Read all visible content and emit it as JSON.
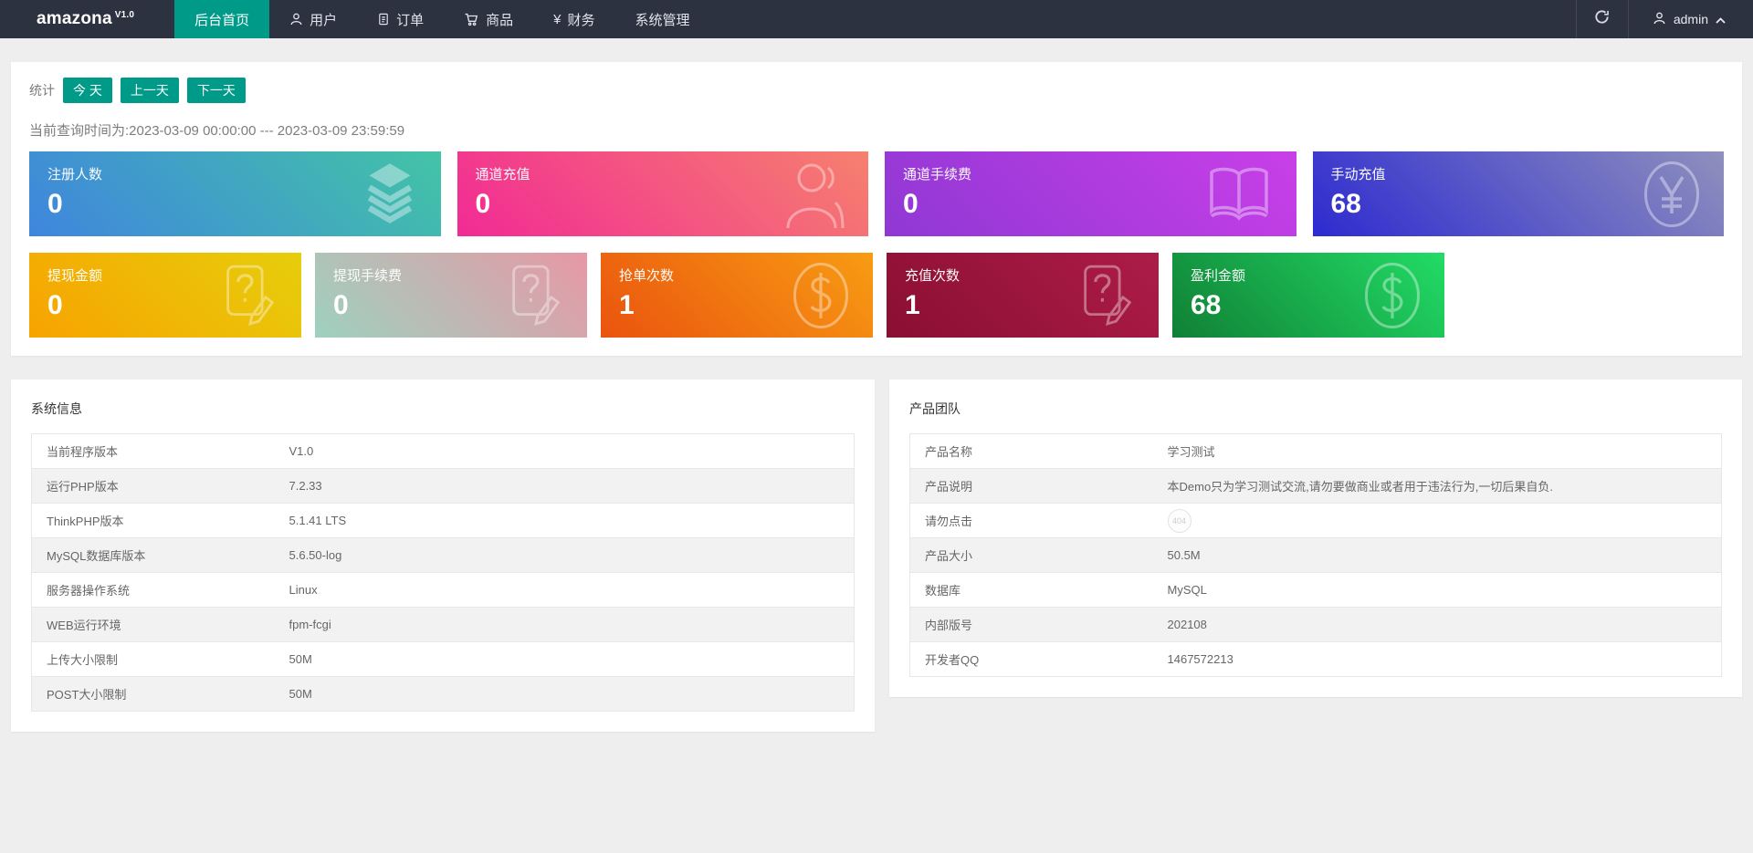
{
  "navbar": {
    "brand": "amazona",
    "brand_version": "V1.0",
    "menu": [
      {
        "key": "home",
        "label": "后台首页",
        "icon": "",
        "active": true
      },
      {
        "key": "users",
        "label": "用户",
        "icon": "user",
        "active": false
      },
      {
        "key": "orders",
        "label": "订单",
        "icon": "order",
        "active": false
      },
      {
        "key": "goods",
        "label": "商品",
        "icon": "cart",
        "active": false
      },
      {
        "key": "finance",
        "label": "财务",
        "icon": "yen",
        "active": false
      },
      {
        "key": "system",
        "label": "系统管理",
        "icon": "",
        "active": false
      }
    ],
    "user_name": "admin"
  },
  "stats": {
    "section_label": "统计",
    "range_buttons": [
      "今 天",
      "上一天",
      "下一天"
    ],
    "query_time": "当前查询时间为:2023-03-09 00:00:00 --- 2023-03-09 23:59:59",
    "cards_row1": [
      {
        "key": "registered-users",
        "title": "注册人数",
        "value": "0",
        "icon": "layers",
        "gradient_from": "#3f85de",
        "gradient_to": "#43c4a6"
      },
      {
        "key": "channel-recharge",
        "title": "通道充值",
        "value": "0",
        "icon": "person",
        "gradient_from": "#f22a95",
        "gradient_to": "#f6806e"
      },
      {
        "key": "channel-fee",
        "title": "通道手续费",
        "value": "0",
        "icon": "book",
        "gradient_from": "#8f38d4",
        "gradient_to": "#c93fe8"
      },
      {
        "key": "manual-recharge",
        "title": "手动充值",
        "value": "68",
        "icon": "yen-circle",
        "gradient_from": "#2d2ad0",
        "gradient_to": "#8f90bd"
      }
    ],
    "cards_row2": [
      {
        "key": "withdraw-amount",
        "title": "提现金额",
        "value": "0",
        "icon": "doc-question",
        "gradient_from": "#f8a300",
        "gradient_to": "#e6ce0c"
      },
      {
        "key": "withdraw-fee",
        "title": "提现手续费",
        "value": "0",
        "icon": "doc-question",
        "gradient_from": "#9ed1bf",
        "gradient_to": "#e798a5"
      },
      {
        "key": "grab-order-count",
        "title": "抢单次数",
        "value": "1",
        "icon": "dollar-circle",
        "gradient_from": "#ea540e",
        "gradient_to": "#f89c13"
      },
      {
        "key": "recharge-count",
        "title": "充值次数",
        "value": "1",
        "icon": "doc-question",
        "gradient_from": "#8a0f31",
        "gradient_to": "#ad1c49"
      },
      {
        "key": "profit-amount",
        "title": "盈利金额",
        "value": "68",
        "icon": "dollar-circle",
        "gradient_from": "#108035",
        "gradient_to": "#22dc66"
      }
    ]
  },
  "system_info": {
    "title": "系统信息",
    "rows": [
      {
        "label": "当前程序版本",
        "value": "V1.0"
      },
      {
        "label": "运行PHP版本",
        "value": "7.2.33"
      },
      {
        "label": "ThinkPHP版本",
        "value": "5.1.41 LTS"
      },
      {
        "label": "MySQL数据库版本",
        "value": "5.6.50-log"
      },
      {
        "label": "服务器操作系统",
        "value": "Linux"
      },
      {
        "label": "WEB运行环境",
        "value": "fpm-fcgi"
      },
      {
        "label": "上传大小限制",
        "value": "50M"
      },
      {
        "label": "POST大小限制",
        "value": "50M"
      }
    ]
  },
  "product_team": {
    "title": "产品团队",
    "rows": [
      {
        "label": "产品名称",
        "value": "学习测试"
      },
      {
        "label": "产品说明",
        "value": "本Demo只为学习测试交流,请勿要做商业或者用于违法行为,一切后果自负."
      },
      {
        "label": "请勿点击",
        "value": "404",
        "badge": true
      },
      {
        "label": "产品大小",
        "value": "50.5M"
      },
      {
        "label": "数据库",
        "value": "MySQL"
      },
      {
        "label": "内部版号",
        "value": "202108"
      },
      {
        "label": "开发者QQ",
        "value": "1467572213"
      }
    ]
  },
  "colors": {
    "accent_teal": "#009a88",
    "navbar_bg": "#2d3240"
  }
}
